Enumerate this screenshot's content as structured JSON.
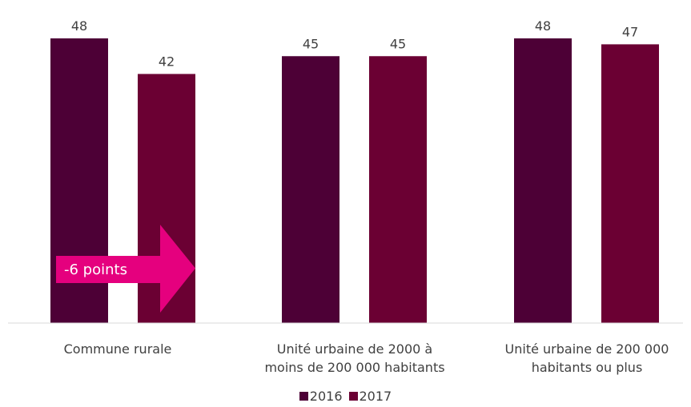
{
  "chart_data": {
    "type": "bar",
    "categories": [
      [
        "Commune rurale"
      ],
      [
        "Unité urbaine de 2000 à",
        "moins de 200 000 habitants"
      ],
      [
        "Unité urbaine de 200 000",
        "habitants ou plus"
      ]
    ],
    "series": [
      {
        "name": "2016",
        "values": [
          48,
          45,
          48
        ],
        "color": "#4d0036"
      },
      {
        "name": "2017",
        "values": [
          42,
          45,
          47
        ],
        "color": "#6b0033"
      }
    ],
    "ylim": [
      0,
      48
    ],
    "grid": false,
    "legend_position": "bottom",
    "annotation": {
      "text": "-6 points",
      "color": "#e5007e",
      "shape": "right-arrow",
      "category": 0
    }
  }
}
